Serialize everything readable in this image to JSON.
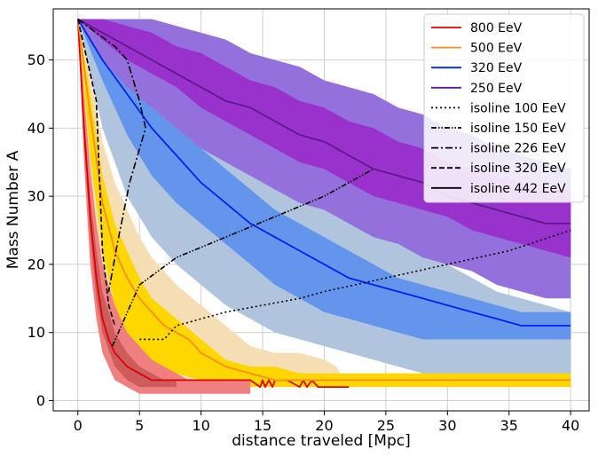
{
  "chart_data": {
    "type": "line",
    "xlabel": "distance traveled [Mpc]",
    "ylabel": "Mass Number A",
    "xlim": [
      -2,
      41.5
    ],
    "ylim": [
      -1.5,
      57.5
    ],
    "xticks": [
      0,
      5,
      10,
      15,
      20,
      25,
      30,
      35,
      40
    ],
    "yticks": [
      0,
      10,
      20,
      30,
      40,
      50
    ],
    "grid": true,
    "legend_position": "top-right",
    "bands": [
      {
        "name": "320 EeV outer",
        "color": "#b0c4de",
        "x": [
          0,
          2,
          4,
          6,
          8,
          10,
          12,
          14,
          16,
          18,
          20,
          22,
          24,
          26,
          28,
          30,
          32,
          34,
          36,
          38,
          40
        ],
        "upper": [
          56,
          54,
          52,
          49,
          46,
          43,
          40,
          38,
          35,
          33,
          30,
          28,
          26,
          24,
          22,
          20,
          18,
          16,
          15,
          14,
          13
        ],
        "lower": [
          56,
          40,
          30,
          24,
          20,
          17,
          14,
          12,
          10,
          9,
          8,
          7,
          6,
          5,
          4,
          3,
          3,
          3,
          3,
          3,
          3
        ]
      },
      {
        "name": "320 EeV inner",
        "color": "#6495ed",
        "x": [
          0,
          2,
          4,
          6,
          8,
          10,
          12,
          14,
          16,
          18,
          20,
          22,
          24,
          26,
          28,
          30,
          32,
          34,
          36,
          38,
          40
        ],
        "upper": [
          56,
          52,
          47,
          43,
          40,
          37,
          34,
          31,
          28,
          26,
          24,
          22,
          20,
          18,
          17,
          16,
          15,
          14,
          13,
          13,
          13
        ],
        "lower": [
          56,
          47,
          39,
          33,
          29,
          26,
          23,
          20,
          17,
          15,
          13,
          12,
          11,
          10,
          9,
          9,
          9,
          9,
          9,
          9,
          9
        ]
      },
      {
        "name": "250 EeV outer",
        "color": "#9370db",
        "x": [
          0,
          2,
          4,
          6,
          8,
          10,
          12,
          14,
          16,
          18,
          20,
          22,
          24,
          26,
          28,
          30,
          32,
          34,
          36,
          38,
          40
        ],
        "upper": [
          56,
          56,
          56,
          56,
          55,
          54,
          53,
          51,
          50,
          49,
          47,
          46,
          45,
          43,
          42,
          40,
          39,
          37,
          36,
          35,
          34
        ],
        "lower": [
          56,
          50,
          46,
          43,
          40,
          37,
          35,
          33,
          31,
          29,
          28,
          26,
          24,
          23,
          21,
          20,
          19,
          17,
          16,
          15,
          15
        ]
      },
      {
        "name": "250 EeV inner",
        "color": "#9932cc",
        "x": [
          0,
          2,
          4,
          6,
          8,
          10,
          12,
          14,
          16,
          18,
          20,
          22,
          24,
          26,
          28,
          30,
          32,
          34,
          36,
          38,
          40
        ],
        "upper": [
          56,
          56,
          55,
          54,
          52,
          51,
          49,
          47,
          46,
          44,
          43,
          41,
          40,
          38,
          37,
          35,
          34,
          33,
          32,
          31,
          31
        ],
        "lower": [
          56,
          53,
          50,
          48,
          46,
          43,
          41,
          39,
          37,
          35,
          34,
          32,
          30,
          29,
          28,
          27,
          25,
          24,
          23,
          22,
          21
        ]
      },
      {
        "name": "500 EeV outer",
        "color": "#f5deb3",
        "x": [
          0,
          1,
          2,
          3,
          4,
          5,
          6,
          8,
          10,
          12,
          14,
          16,
          18,
          20,
          21,
          21.5,
          22,
          24,
          26,
          28,
          30,
          32,
          34,
          36,
          38,
          40
        ],
        "upper": [
          56,
          48,
          38,
          32,
          28,
          24,
          21,
          17,
          14,
          11,
          8,
          7,
          7,
          6,
          5,
          3,
          3,
          3,
          3,
          3,
          3,
          3,
          3,
          3,
          3,
          3
        ],
        "lower": [
          56,
          30,
          16,
          10,
          6,
          4,
          3,
          2,
          2,
          2,
          2,
          2,
          2,
          2,
          2,
          2,
          2,
          2,
          2,
          2,
          2,
          2,
          2,
          2,
          2,
          2
        ]
      },
      {
        "name": "500 EeV inner",
        "color": "#ffd700",
        "x": [
          0,
          1,
          2,
          3,
          4,
          5,
          6,
          8,
          10,
          12,
          14,
          16,
          18,
          20,
          22,
          24,
          26,
          28,
          30,
          32,
          34,
          36,
          38,
          40
        ],
        "upper": [
          56,
          45,
          33,
          26,
          22,
          18,
          15,
          12,
          9,
          6,
          5,
          5,
          4,
          4,
          4,
          4,
          4,
          4,
          4,
          4,
          4,
          4,
          4,
          4
        ],
        "lower": [
          56,
          36,
          22,
          14,
          10,
          7,
          5,
          4,
          3,
          2,
          2,
          2,
          2,
          2,
          2,
          2,
          2,
          2,
          2,
          2,
          2,
          2,
          2,
          2
        ]
      },
      {
        "name": "800 EeV outer",
        "color": "#f08080",
        "x": [
          0,
          0.5,
          1,
          1.5,
          2,
          3,
          4,
          5,
          6,
          7,
          8,
          9,
          10,
          12,
          14
        ],
        "upper": [
          56,
          45,
          34,
          26,
          20,
          14,
          10,
          8,
          6,
          5,
          4,
          3,
          3,
          3,
          3
        ],
        "lower": [
          56,
          35,
          20,
          12,
          7,
          3,
          2,
          1,
          1,
          1,
          1,
          1,
          1,
          1,
          1
        ]
      },
      {
        "name": "800 EeV inner",
        "color": "#cd5c5c",
        "x": [
          0,
          0.5,
          1,
          1.5,
          2,
          3,
          4,
          5,
          6,
          7,
          8
        ],
        "upper": [
          56,
          42,
          30,
          22,
          16,
          10,
          7,
          5,
          4,
          3,
          3
        ],
        "lower": [
          56,
          38,
          24,
          15,
          10,
          5,
          3,
          2,
          2,
          2,
          2
        ]
      }
    ],
    "series": [
      {
        "name": "800 EeV",
        "color": "#e00000",
        "style": "solid",
        "x": [
          0,
          0.5,
          1,
          1.5,
          2,
          2.5,
          3,
          4,
          5,
          6,
          7,
          8,
          10,
          12,
          14,
          14.8,
          15,
          15.2,
          15.5,
          15.8,
          16,
          17,
          18,
          18.3,
          18.6,
          19,
          19.5,
          20,
          21,
          22
        ],
        "y": [
          56,
          40,
          27,
          18,
          12,
          9,
          7,
          5,
          4,
          3,
          3,
          3,
          3,
          3,
          3,
          2,
          3,
          2,
          3,
          2,
          3,
          3,
          2,
          3,
          2,
          3,
          2,
          2,
          2,
          2
        ]
      },
      {
        "name": "500 EeV",
        "color": "#ff8c1a",
        "style": "solid",
        "x": [
          0,
          1,
          2,
          3,
          4,
          5,
          6,
          7,
          8,
          9,
          10,
          12,
          14,
          16,
          18,
          20,
          22,
          24,
          26,
          28,
          30,
          32,
          34,
          36,
          38,
          40
        ],
        "y": [
          56,
          42,
          29,
          22,
          18,
          15,
          13,
          11,
          10,
          9,
          7,
          5,
          4,
          3,
          3,
          3,
          3,
          3,
          3,
          3,
          3,
          3,
          3,
          3,
          3,
          3
        ]
      },
      {
        "name": "320 EeV",
        "color": "#0022ee",
        "style": "solid",
        "x": [
          0,
          2,
          4,
          6,
          8,
          10,
          12,
          14,
          16,
          18,
          20,
          22,
          24,
          26,
          28,
          30,
          32,
          34,
          36,
          38,
          40
        ],
        "y": [
          56,
          50,
          45,
          40,
          36,
          32,
          29,
          26,
          24,
          22,
          20,
          18,
          17,
          16,
          15,
          14,
          13,
          12,
          11,
          11,
          11
        ]
      },
      {
        "name": "250 EeV",
        "color": "#5b1a8a",
        "style": "solid",
        "x": [
          0,
          2,
          4,
          6,
          8,
          10,
          12,
          14,
          16,
          18,
          20,
          22,
          24,
          26,
          28,
          30,
          32,
          34,
          36,
          38,
          40
        ],
        "y": [
          56,
          54,
          52,
          50,
          48,
          46,
          44,
          43,
          41,
          39,
          38,
          36,
          34,
          33,
          32,
          30,
          29,
          28,
          27,
          26,
          26
        ]
      },
      {
        "name": "isoline 100 EeV",
        "color": "#000000",
        "style": "dotted",
        "x": [
          5,
          6,
          7,
          8,
          10,
          12,
          15,
          18,
          20,
          25,
          30,
          35,
          40
        ],
        "y": [
          9,
          9,
          9,
          11,
          12,
          13,
          14,
          15,
          16,
          18,
          20,
          22,
          25
        ]
      },
      {
        "name": "isoline 150 EeV",
        "color": "#000000",
        "style": "dashdotdot",
        "x": [
          2.8,
          5,
          8,
          12,
          16,
          20,
          24
        ],
        "y": [
          8,
          17,
          21,
          24,
          27,
          30,
          34
        ]
      },
      {
        "name": "isoline 226 EeV",
        "color": "#000000",
        "style": "dashdot",
        "x": [
          0,
          1.5,
          3,
          4,
          4.5,
          5,
          5.5,
          4.2,
          3.2,
          2.5
        ],
        "y": [
          56,
          54,
          52,
          50,
          47,
          44,
          40,
          32,
          23,
          16
        ]
      },
      {
        "name": "isoline 320 EeV",
        "color": "#000000",
        "style": "dashed",
        "x": [
          0,
          0.5,
          1,
          1.5,
          2,
          2.5,
          3
        ],
        "y": [
          56,
          52,
          48,
          44,
          22,
          14,
          11
        ]
      },
      {
        "name": "isoline 442 EeV",
        "color": "#000000",
        "style": "solid",
        "x": [],
        "y": []
      }
    ]
  },
  "legend": {
    "items": [
      {
        "label": "800 EeV",
        "color": "#e00000",
        "style": "solid"
      },
      {
        "label": "500 EeV",
        "color": "#ff8c1a",
        "style": "solid"
      },
      {
        "label": "320 EeV",
        "color": "#0022ee",
        "style": "solid"
      },
      {
        "label": "250 EeV",
        "color": "#5b1a8a",
        "style": "solid"
      },
      {
        "label": "isoline 100 EeV",
        "color": "#000000",
        "style": "dotted"
      },
      {
        "label": "isoline 150 EeV",
        "color": "#000000",
        "style": "dashdotdot"
      },
      {
        "label": "isoline 226 EeV",
        "color": "#000000",
        "style": "dashdot"
      },
      {
        "label": "isoline 320 EeV",
        "color": "#000000",
        "style": "dashed"
      },
      {
        "label": "isoline 442 EeV",
        "color": "#000000",
        "style": "solid"
      }
    ]
  }
}
